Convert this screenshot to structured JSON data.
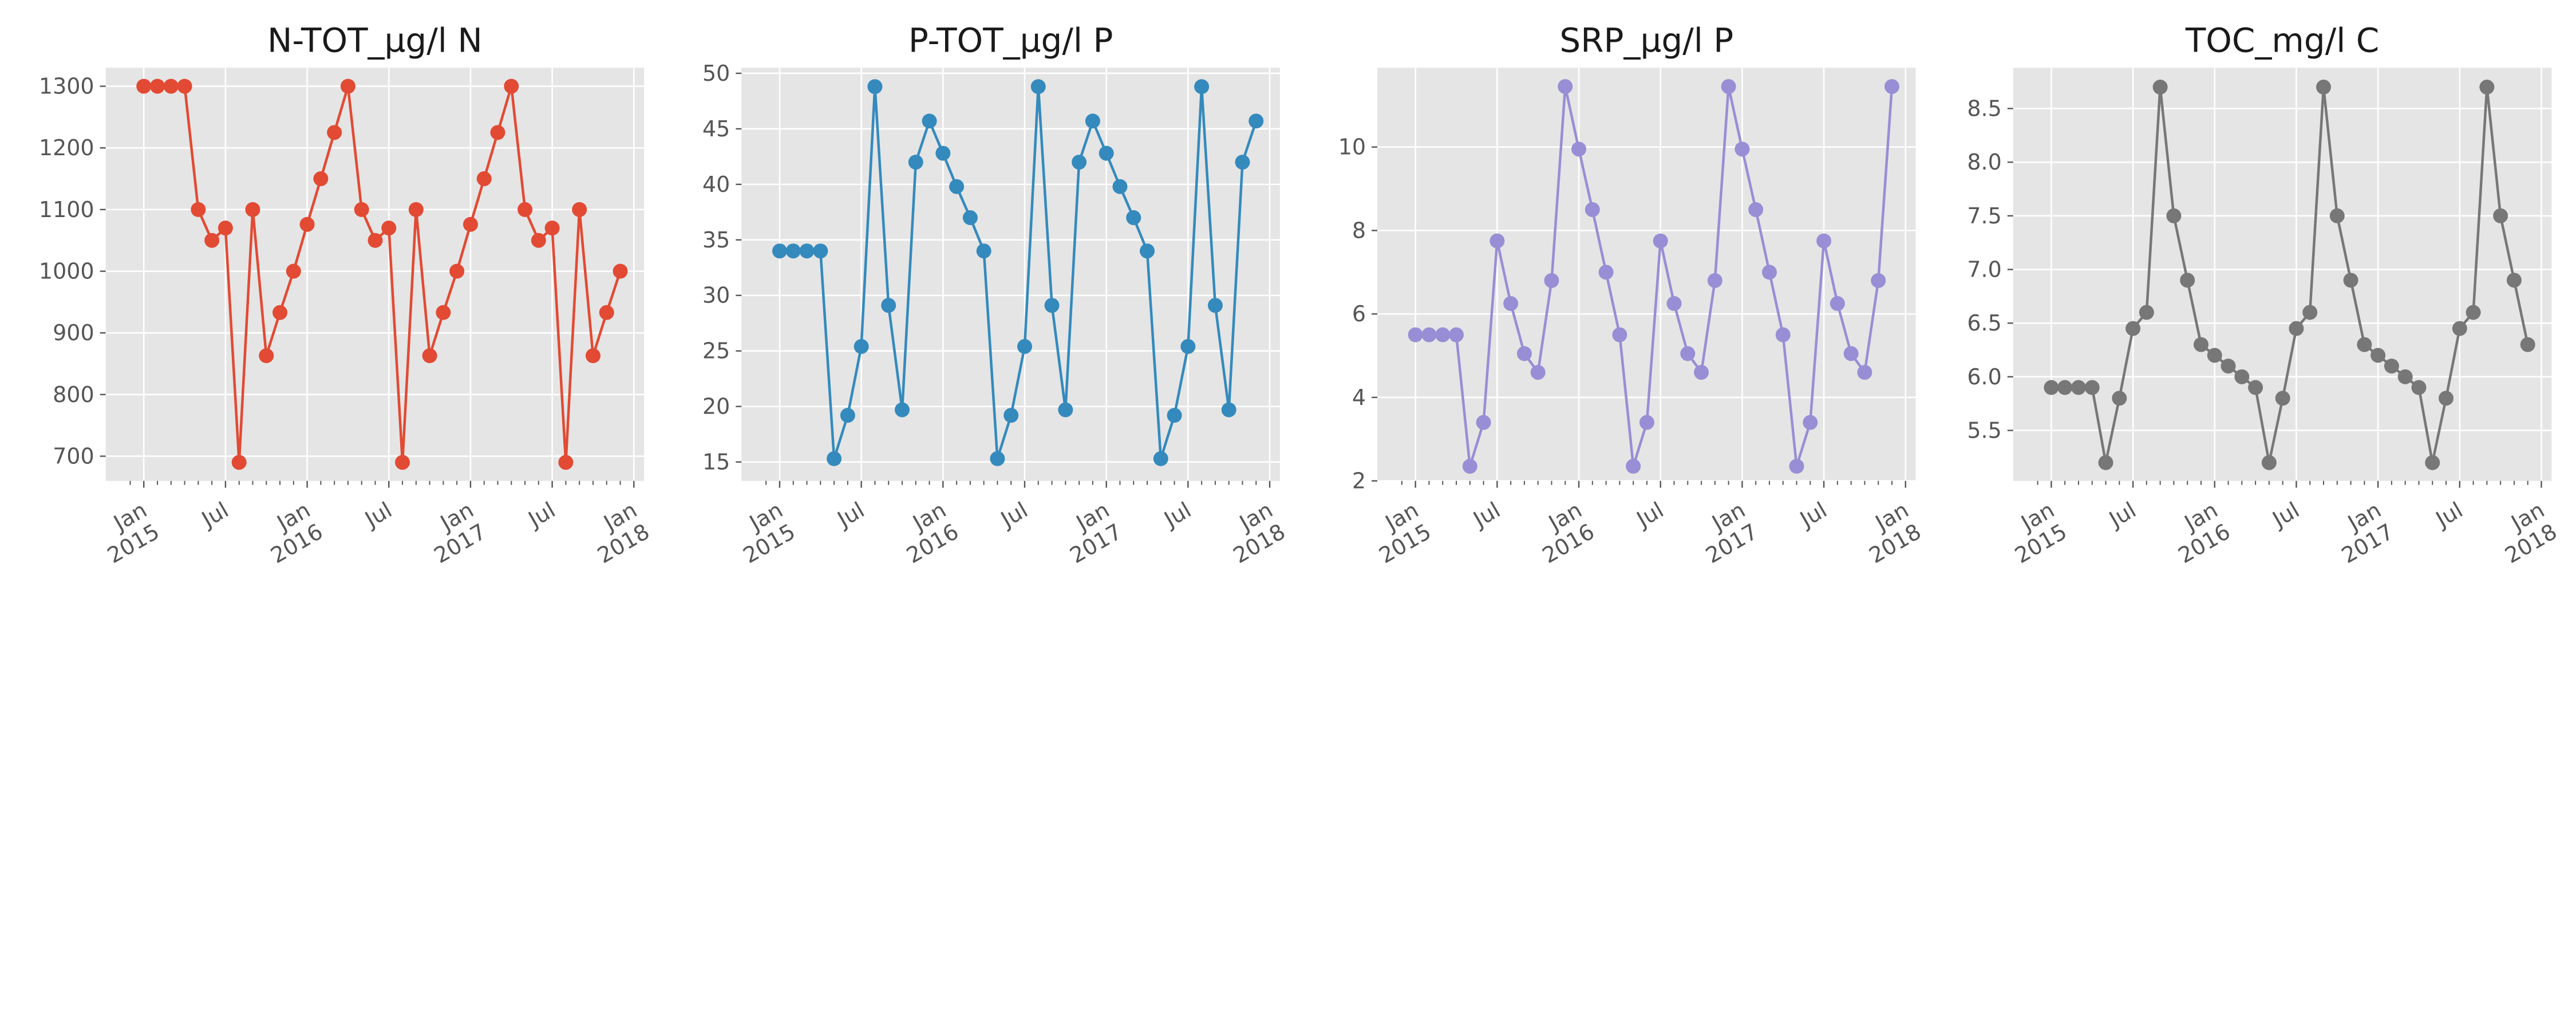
{
  "chart_data": [
    {
      "type": "line",
      "title": "N-TOT_µg/l N",
      "xlabel": "",
      "ylabel": "",
      "color": "#E24A33",
      "ylim": [
        660,
        1330
      ],
      "yticks": [
        700,
        800,
        900,
        1000,
        1100,
        1200,
        1300
      ],
      "x_start": "2015-01",
      "x_end": "2017-12",
      "x_major_ticks": [
        {
          "date": "2015-01",
          "label": [
            "Jan",
            "2015"
          ]
        },
        {
          "date": "2015-07",
          "label": [
            "Jul"
          ]
        },
        {
          "date": "2016-01",
          "label": [
            "Jan",
            "2016"
          ]
        },
        {
          "date": "2016-07",
          "label": [
            "Jul"
          ]
        },
        {
          "date": "2017-01",
          "label": [
            "Jan",
            "2017"
          ]
        },
        {
          "date": "2017-07",
          "label": [
            "Jul"
          ]
        },
        {
          "date": "2018-01",
          "label": [
            "Jan",
            "2018"
          ]
        }
      ],
      "grid": true,
      "values": [
        1300,
        1300,
        1300,
        1300,
        1100,
        1050,
        1070,
        690,
        1100,
        863,
        933,
        1000,
        1076,
        1150,
        1225,
        1300,
        1100,
        1050,
        1070,
        690,
        1100,
        863,
        933,
        1000,
        1076,
        1150,
        1225,
        1300,
        1100,
        1050,
        1070,
        690,
        1100,
        863,
        933,
        1000
      ]
    },
    {
      "type": "line",
      "title": "P-TOT_µg/l P",
      "xlabel": "",
      "ylabel": "",
      "color": "#348ABD",
      "ylim": [
        13.3,
        50.5
      ],
      "yticks": [
        15,
        20,
        25,
        30,
        35,
        40,
        45,
        50
      ],
      "x_start": "2015-01",
      "x_end": "2017-12",
      "x_major_ticks": [
        {
          "date": "2015-01",
          "label": [
            "Jan",
            "2015"
          ]
        },
        {
          "date": "2015-07",
          "label": [
            "Jul"
          ]
        },
        {
          "date": "2016-01",
          "label": [
            "Jan",
            "2016"
          ]
        },
        {
          "date": "2016-07",
          "label": [
            "Jul"
          ]
        },
        {
          "date": "2017-01",
          "label": [
            "Jan",
            "2017"
          ]
        },
        {
          "date": "2017-07",
          "label": [
            "Jul"
          ]
        },
        {
          "date": "2018-01",
          "label": [
            "Jan",
            "2018"
          ]
        }
      ],
      "grid": true,
      "values": [
        34,
        34,
        34,
        34,
        15.3,
        19.2,
        25.4,
        48.8,
        29.1,
        19.7,
        42,
        45.7,
        42.8,
        39.8,
        37,
        34,
        15.3,
        19.2,
        25.4,
        48.8,
        29.1,
        19.7,
        42,
        45.7,
        42.8,
        39.8,
        37,
        34,
        15.3,
        19.2,
        25.4,
        48.8,
        29.1,
        19.7,
        42,
        45.7
      ]
    },
    {
      "type": "line",
      "title": "SRP_µg/l P",
      "xlabel": "",
      "ylabel": "",
      "color": "#988ED5",
      "ylim": [
        2,
        11.9
      ],
      "yticks": [
        2,
        4,
        6,
        8,
        10
      ],
      "x_start": "2015-01",
      "x_end": "2017-12",
      "x_major_ticks": [
        {
          "date": "2015-01",
          "label": [
            "Jan",
            "2015"
          ]
        },
        {
          "date": "2015-07",
          "label": [
            "Jul"
          ]
        },
        {
          "date": "2016-01",
          "label": [
            "Jan",
            "2016"
          ]
        },
        {
          "date": "2016-07",
          "label": [
            "Jul"
          ]
        },
        {
          "date": "2017-01",
          "label": [
            "Jan",
            "2017"
          ]
        },
        {
          "date": "2017-07",
          "label": [
            "Jul"
          ]
        },
        {
          "date": "2018-01",
          "label": [
            "Jan",
            "2018"
          ]
        }
      ],
      "grid": true,
      "values": [
        5.5,
        5.5,
        5.5,
        5.5,
        2.35,
        3.4,
        7.75,
        6.25,
        5.05,
        4.6,
        6.8,
        11.45,
        9.95,
        8.5,
        7,
        5.5,
        2.35,
        3.4,
        7.75,
        6.25,
        5.05,
        4.6,
        6.8,
        11.45,
        9.95,
        8.5,
        7,
        5.5,
        2.35,
        3.4,
        7.75,
        6.25,
        5.05,
        4.6,
        6.8,
        11.45
      ]
    },
    {
      "type": "line",
      "title": "TOC_mg/l C",
      "xlabel": "",
      "ylabel": "",
      "color": "#777777",
      "ylim": [
        5.03,
        8.88
      ],
      "yticks": [
        5.5,
        6.0,
        6.5,
        7.0,
        7.5,
        8.0,
        8.5
      ],
      "x_start": "2015-01",
      "x_end": "2017-12",
      "x_major_ticks": [
        {
          "date": "2015-01",
          "label": [
            "Jan",
            "2015"
          ]
        },
        {
          "date": "2015-07",
          "label": [
            "Jul"
          ]
        },
        {
          "date": "2016-01",
          "label": [
            "Jan",
            "2016"
          ]
        },
        {
          "date": "2016-07",
          "label": [
            "Jul"
          ]
        },
        {
          "date": "2017-01",
          "label": [
            "Jan",
            "2017"
          ]
        },
        {
          "date": "2017-07",
          "label": [
            "Jul"
          ]
        },
        {
          "date": "2018-01",
          "label": [
            "Jan",
            "2018"
          ]
        }
      ],
      "grid": true,
      "values": [
        5.9,
        5.9,
        5.9,
        5.9,
        5.2,
        5.8,
        6.45,
        6.6,
        8.7,
        7.5,
        6.9,
        6.3,
        6.2,
        6.1,
        6.0,
        5.9,
        5.2,
        5.8,
        6.45,
        6.6,
        8.7,
        7.5,
        6.9,
        6.3,
        6.2,
        6.1,
        6.0,
        5.9,
        5.2,
        5.8,
        6.45,
        6.6,
        8.7,
        7.5,
        6.9,
        6.3
      ]
    }
  ]
}
